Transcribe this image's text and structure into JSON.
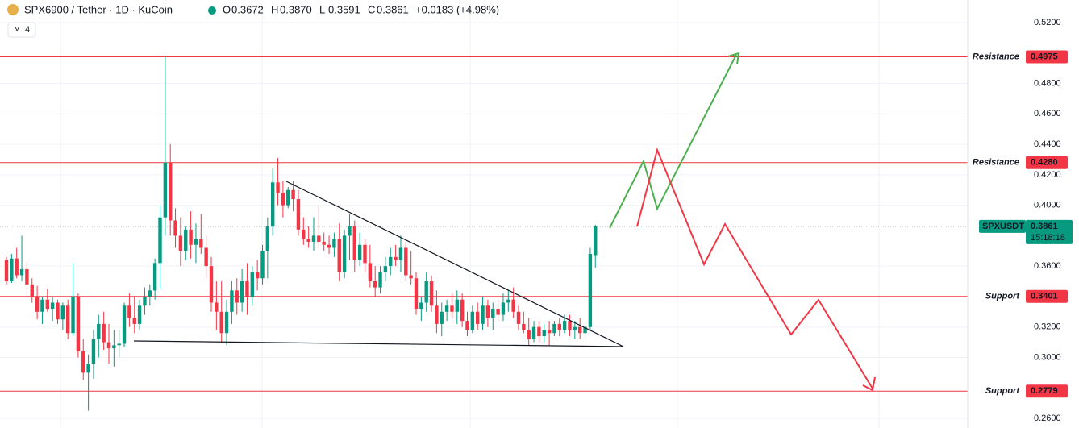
{
  "chart_data": {
    "type": "candlestick",
    "title": "SPX6900 / Tether · 1D · KuCoin",
    "ohlc": [
      {
        "label": "O",
        "value": "0.3672"
      },
      {
        "label": "H",
        "value": "0.3870"
      },
      {
        "label": "L",
        "value": "0.3591"
      },
      {
        "label": "C",
        "value": "0.3861"
      }
    ],
    "change": "+0.0183 (+4.98%)",
    "indicator_count": "4",
    "up_color": "#089981",
    "down_color": "#f23645",
    "ylim": [
      0.26,
      0.52
    ],
    "yticks": [
      {
        "value": 0.52,
        "label": "0.5200"
      },
      {
        "value": 0.48,
        "label": "0.4800"
      },
      {
        "value": 0.46,
        "label": "0.4600"
      },
      {
        "value": 0.44,
        "label": "0.4400"
      },
      {
        "value": 0.42,
        "label": "0.4200"
      },
      {
        "value": 0.4,
        "label": "0.4000"
      },
      {
        "value": 0.36,
        "label": "0.3600"
      },
      {
        "value": 0.32,
        "label": "0.3200"
      },
      {
        "value": 0.3,
        "label": "0.3000"
      },
      {
        "value": 0.26,
        "label": "0.2600"
      }
    ],
    "levels": {
      "names": [
        "Resistance",
        "Resistance",
        "Support",
        "Support"
      ],
      "values": [
        0.4975,
        0.428,
        0.3401,
        0.2779
      ],
      "value_labels": [
        "0.4975",
        "0.4280",
        "0.3401",
        "0.2779"
      ],
      "color": "#f23645"
    },
    "last_price": {
      "symbol": "SPXUSDT",
      "value": 0.3861,
      "countdown": "15:18:18"
    },
    "open": [
      0.364,
      0.35,
      0.365,
      0.354,
      0.358,
      0.348,
      0.34,
      0.33,
      0.338,
      0.332,
      0.336,
      0.325,
      0.334,
      0.316,
      0.34,
      0.304,
      0.29,
      0.296,
      0.312,
      0.322,
      0.31,
      0.306,
      0.308,
      0.309,
      0.334,
      0.326,
      0.322,
      0.334,
      0.34,
      0.344,
      0.362,
      0.392,
      0.428,
      0.39,
      0.38,
      0.37,
      0.384,
      0.374,
      0.378,
      0.372,
      0.36,
      0.336,
      0.33,
      0.316,
      0.33,
      0.344,
      0.336,
      0.35,
      0.34,
      0.356,
      0.352,
      0.37,
      0.386,
      0.415,
      0.408,
      0.4,
      0.41,
      0.404,
      0.384,
      0.378,
      0.376,
      0.38,
      0.376,
      0.374,
      0.372,
      0.378,
      0.356,
      0.38,
      0.386,
      0.364,
      0.374,
      0.362,
      0.35,
      0.346,
      0.356,
      0.36,
      0.366,
      0.364,
      0.372,
      0.354,
      0.352,
      0.332,
      0.336,
      0.35,
      0.334,
      0.322,
      0.33,
      0.334,
      0.33,
      0.338,
      0.324,
      0.318,
      0.33,
      0.322,
      0.334,
      0.326,
      0.332,
      0.328,
      0.336,
      0.338,
      0.33,
      0.322,
      0.318,
      0.312,
      0.32,
      0.314,
      0.318,
      0.316,
      0.322,
      0.318,
      0.324,
      0.318,
      0.32,
      0.316,
      0.32,
      0.3672
    ],
    "high": [
      0.366,
      0.368,
      0.372,
      0.38,
      0.363,
      0.352,
      0.347,
      0.34,
      0.345,
      0.34,
      0.338,
      0.336,
      0.338,
      0.362,
      0.342,
      0.312,
      0.302,
      0.318,
      0.328,
      0.33,
      0.322,
      0.318,
      0.318,
      0.336,
      0.342,
      0.34,
      0.338,
      0.346,
      0.348,
      0.365,
      0.4,
      0.4975,
      0.44,
      0.398,
      0.392,
      0.386,
      0.396,
      0.388,
      0.394,
      0.38,
      0.366,
      0.35,
      0.35,
      0.338,
      0.35,
      0.352,
      0.358,
      0.362,
      0.36,
      0.364,
      0.374,
      0.392,
      0.424,
      0.431,
      0.416,
      0.412,
      0.416,
      0.41,
      0.392,
      0.386,
      0.392,
      0.4,
      0.382,
      0.38,
      0.382,
      0.388,
      0.384,
      0.394,
      0.39,
      0.382,
      0.378,
      0.374,
      0.36,
      0.36,
      0.366,
      0.372,
      0.374,
      0.38,
      0.376,
      0.37,
      0.356,
      0.34,
      0.356,
      0.354,
      0.344,
      0.336,
      0.338,
      0.342,
      0.344,
      0.342,
      0.33,
      0.334,
      0.336,
      0.34,
      0.338,
      0.336,
      0.338,
      0.342,
      0.344,
      0.346,
      0.334,
      0.33,
      0.326,
      0.324,
      0.324,
      0.322,
      0.324,
      0.324,
      0.326,
      0.328,
      0.328,
      0.324,
      0.326,
      0.322,
      0.372,
      0.387
    ],
    "low": [
      0.348,
      0.349,
      0.352,
      0.35,
      0.345,
      0.336,
      0.325,
      0.322,
      0.33,
      0.324,
      0.322,
      0.318,
      0.312,
      0.314,
      0.3,
      0.285,
      0.265,
      0.286,
      0.3,
      0.305,
      0.296,
      0.294,
      0.3,
      0.307,
      0.32,
      0.316,
      0.318,
      0.328,
      0.334,
      0.338,
      0.345,
      0.38,
      0.38,
      0.372,
      0.36,
      0.364,
      0.365,
      0.362,
      0.368,
      0.352,
      0.33,
      0.318,
      0.31,
      0.308,
      0.322,
      0.328,
      0.33,
      0.328,
      0.334,
      0.344,
      0.348,
      0.352,
      0.38,
      0.4,
      0.392,
      0.398,
      0.396,
      0.38,
      0.374,
      0.372,
      0.37,
      0.372,
      0.37,
      0.368,
      0.366,
      0.35,
      0.352,
      0.364,
      0.356,
      0.36,
      0.356,
      0.346,
      0.34,
      0.342,
      0.35,
      0.354,
      0.36,
      0.356,
      0.35,
      0.348,
      0.328,
      0.324,
      0.33,
      0.33,
      0.316,
      0.314,
      0.324,
      0.326,
      0.322,
      0.32,
      0.314,
      0.316,
      0.318,
      0.318,
      0.32,
      0.318,
      0.324,
      0.324,
      0.33,
      0.326,
      0.318,
      0.316,
      0.308,
      0.31,
      0.31,
      0.31,
      0.308,
      0.314,
      0.314,
      0.316,
      0.314,
      0.312,
      0.312,
      0.312,
      0.318,
      0.3591
    ],
    "close": [
      0.35,
      0.365,
      0.354,
      0.358,
      0.348,
      0.34,
      0.33,
      0.338,
      0.332,
      0.336,
      0.325,
      0.334,
      0.316,
      0.34,
      0.304,
      0.29,
      0.296,
      0.312,
      0.322,
      0.31,
      0.306,
      0.308,
      0.309,
      0.334,
      0.326,
      0.322,
      0.334,
      0.34,
      0.344,
      0.362,
      0.392,
      0.428,
      0.39,
      0.38,
      0.37,
      0.384,
      0.374,
      0.378,
      0.372,
      0.36,
      0.336,
      0.33,
      0.316,
      0.33,
      0.344,
      0.336,
      0.35,
      0.34,
      0.356,
      0.352,
      0.37,
      0.386,
      0.415,
      0.408,
      0.4,
      0.41,
      0.404,
      0.384,
      0.378,
      0.376,
      0.38,
      0.376,
      0.374,
      0.372,
      0.378,
      0.356,
      0.38,
      0.386,
      0.364,
      0.374,
      0.362,
      0.35,
      0.346,
      0.356,
      0.36,
      0.366,
      0.364,
      0.372,
      0.354,
      0.352,
      0.332,
      0.336,
      0.35,
      0.334,
      0.322,
      0.33,
      0.334,
      0.33,
      0.338,
      0.324,
      0.318,
      0.33,
      0.322,
      0.334,
      0.326,
      0.332,
      0.328,
      0.336,
      0.338,
      0.33,
      0.322,
      0.318,
      0.312,
      0.32,
      0.314,
      0.318,
      0.316,
      0.322,
      0.318,
      0.324,
      0.318,
      0.32,
      0.316,
      0.32,
      0.368,
      0.3861
    ]
  }
}
